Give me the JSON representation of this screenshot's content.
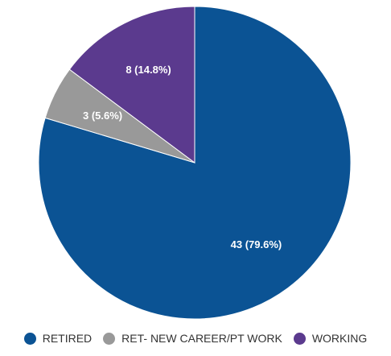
{
  "chart_data": {
    "type": "pie",
    "slices": [
      {
        "label": "RETIRED",
        "value": 43,
        "percent": 79.6,
        "color": "#0b5394",
        "data_label": "43 (79.6%)"
      },
      {
        "label": "RET- NEW CAREER/PT WORK",
        "value": 3,
        "percent": 5.6,
        "color": "#999999",
        "data_label": "3 (5.6%)"
      },
      {
        "label": "WORKING",
        "value": 8,
        "percent": 14.8,
        "color": "#5b3a8e",
        "data_label": "8 (14.8%)"
      }
    ],
    "legend_position": "bottom",
    "start_angle": "12 o'clock",
    "direction": "clockwise"
  }
}
